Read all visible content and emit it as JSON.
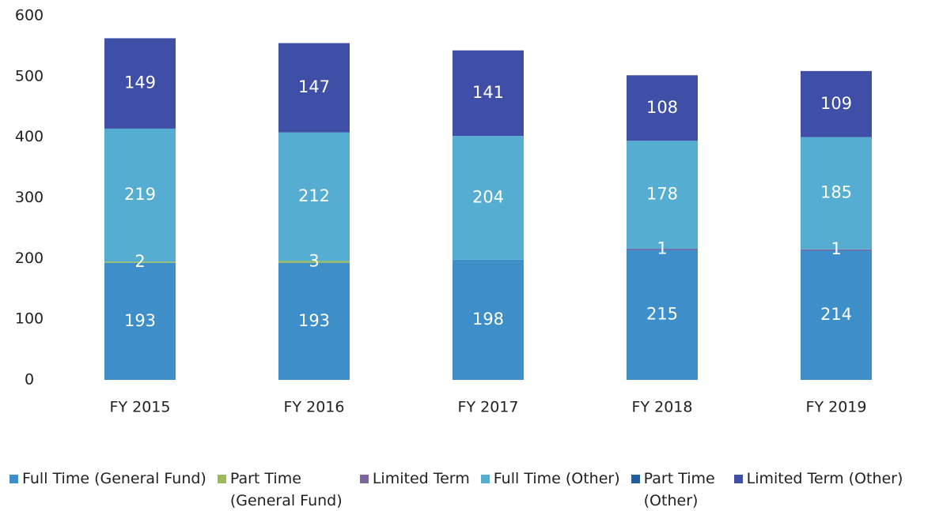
{
  "chart_data": {
    "type": "stacked-bar",
    "categories": [
      "FY 2015",
      "FY 2016",
      "FY 2017",
      "FY 2018",
      "FY 2019"
    ],
    "series": [
      {
        "name": "Full Time (General Fund)",
        "color": "#3d8ec9",
        "values": [
          193,
          193,
          198,
          215,
          214
        ]
      },
      {
        "name": "Part Time (General Fund)",
        "color": "#9bbb59",
        "values": [
          2,
          3,
          null,
          null,
          null
        ]
      },
      {
        "name": "Limited Term",
        "color": "#8064a2",
        "values": [
          null,
          null,
          null,
          1,
          1
        ]
      },
      {
        "name": "Full Time (Other)",
        "color": "#55add2",
        "values": [
          219,
          212,
          204,
          178,
          185
        ]
      },
      {
        "name": "Part Time (Other)",
        "color": "#1f5fa0",
        "values": [
          null,
          null,
          null,
          null,
          null
        ]
      },
      {
        "name": "Limited Term (Other)",
        "color": "#3f4fa8",
        "values": [
          149,
          147,
          141,
          108,
          109
        ]
      }
    ],
    "ylim": [
      0,
      600
    ],
    "yticks": [
      0,
      100,
      200,
      300,
      400,
      500,
      600
    ],
    "grid": false
  }
}
